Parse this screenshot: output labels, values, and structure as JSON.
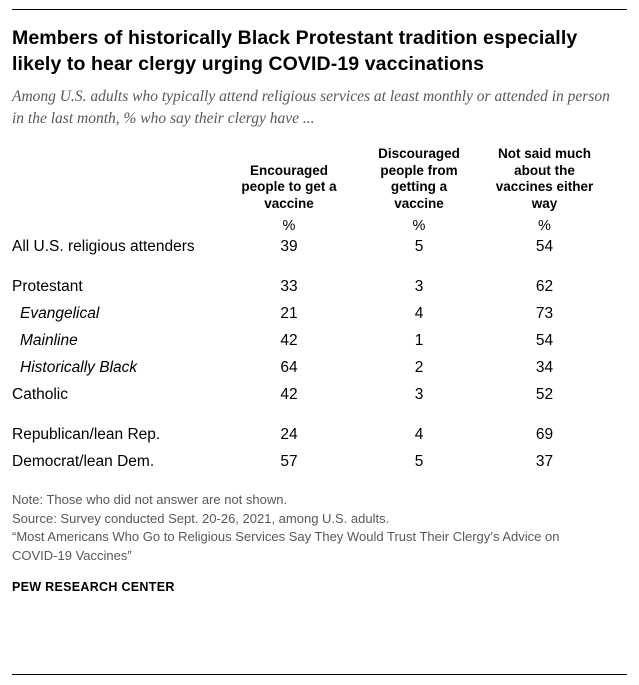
{
  "colors": {
    "text": "#000000",
    "muted": "#58585a",
    "rule": "#000000"
  },
  "chart_data": {
    "type": "table",
    "title": "Members of historically Black Protestant tradition especially likely to hear clergy urging COVID-19 vaccinations",
    "subtitle": "Among U.S. adults who typically attend religious services at least monthly or attended in person in the last month, % who say their clergy have ...",
    "unit": "%",
    "columns": [
      "Encouraged people to get a vaccine",
      "Discouraged people from getting a vaccine",
      "Not said much about the vaccines either way"
    ],
    "rows": [
      {
        "label": "All U.S. religious attenders",
        "indent": false,
        "values": [
          39,
          5,
          54
        ]
      },
      {
        "label": "Protestant",
        "indent": false,
        "values": [
          33,
          3,
          62
        ]
      },
      {
        "label": "Evangelical",
        "indent": true,
        "values": [
          21,
          4,
          73
        ]
      },
      {
        "label": "Mainline",
        "indent": true,
        "values": [
          42,
          1,
          54
        ]
      },
      {
        "label": "Historically Black",
        "indent": true,
        "values": [
          64,
          2,
          34
        ]
      },
      {
        "label": "Catholic",
        "indent": false,
        "values": [
          42,
          3,
          52
        ]
      },
      {
        "label": "Republican/lean Rep.",
        "indent": false,
        "values": [
          24,
          4,
          69
        ]
      },
      {
        "label": "Democrat/lean Dem.",
        "indent": false,
        "values": [
          57,
          5,
          37
        ]
      }
    ],
    "note": "Note: Those who did not answer are not shown.",
    "source": "Source: Survey conducted Sept. 20-26, 2021, among U.S. adults.",
    "quote": "“Most Americans Who Go to Religious Services Say They Would Trust Their Clergy’s Advice on COVID-19 Vaccines”",
    "footer": "PEW RESEARCH CENTER"
  }
}
